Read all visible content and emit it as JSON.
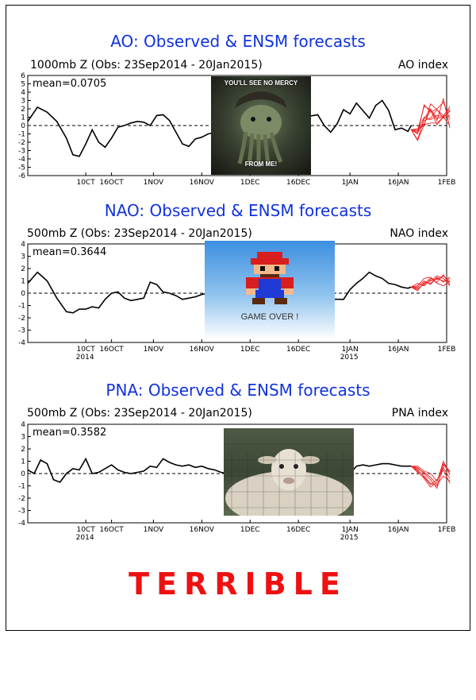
{
  "caption": "TERRIBLE",
  "memes": {
    "kraken_top_text": "YOU'LL SEE NO MERCY",
    "kraken_bottom_text": "FROM ME!",
    "gameover_text": "GAME OVER !"
  },
  "chart_data": [
    {
      "type": "line",
      "title": "AO: Observed & ENSM forecasts",
      "subtitle": "1000mb Z (Obs: 23Sep2014 - 20Jan2015)",
      "index_label": "AO index",
      "mean_label": "mean=0.0705",
      "ylim": [
        -6,
        6
      ],
      "yticks": [
        6,
        5,
        4,
        3,
        2,
        1,
        0,
        -1,
        -2,
        -3,
        -4,
        -5,
        -6
      ],
      "xlim": [
        0,
        130
      ],
      "xticks": [
        {
          "x": 18,
          "label": "10CT",
          "year": ""
        },
        {
          "x": 26,
          "label": "16OCT",
          "year": ""
        },
        {
          "x": 39,
          "label": "1NOV",
          "year": ""
        },
        {
          "x": 54,
          "label": "16NOV",
          "year": ""
        },
        {
          "x": 69,
          "label": "1DEC",
          "year": ""
        },
        {
          "x": 84,
          "label": "16DEC",
          "year": ""
        },
        {
          "x": 100,
          "label": "1JAN",
          "year": ""
        },
        {
          "x": 115,
          "label": "16JAN",
          "year": ""
        },
        {
          "x": 131,
          "label": "1FEB",
          "year": ""
        }
      ],
      "observed": {
        "x": [
          0,
          3,
          6,
          9,
          12,
          14,
          16,
          18,
          20,
          22,
          24,
          26,
          28,
          30,
          32,
          34,
          36,
          38,
          40,
          42,
          44,
          46,
          48,
          50,
          52,
          54,
          56,
          90,
          92,
          94,
          96,
          98,
          100,
          102,
          104,
          106,
          108,
          110,
          112,
          114,
          116,
          118,
          119
        ],
        "y": [
          0.5,
          2.2,
          1.6,
          0.5,
          -1.5,
          -3.5,
          -3.7,
          -2.2,
          -0.5,
          -2.0,
          -2.6,
          -1.5,
          -0.2,
          0.0,
          0.3,
          0.5,
          0.4,
          0.0,
          1.2,
          1.3,
          0.6,
          -0.8,
          -2.2,
          -2.5,
          -1.6,
          -1.4,
          -1.0,
          1.3,
          0.0,
          -0.8,
          0.2,
          1.9,
          1.4,
          2.7,
          1.8,
          0.9,
          2.4,
          3.0,
          1.8,
          -0.5,
          -0.3,
          -0.7,
          0.0
        ]
      },
      "ensemble": [
        {
          "x": [
            119,
            121,
            123,
            125,
            127,
            129,
            131
          ],
          "y": [
            -0.5,
            -1.0,
            2.5,
            1.6,
            2.0,
            2.8,
            0.7
          ]
        },
        {
          "x": [
            119,
            121,
            123,
            125,
            127,
            129,
            131
          ],
          "y": [
            -0.5,
            -0.4,
            0.2,
            1.9,
            0.9,
            1.0,
            0.0
          ]
        },
        {
          "x": [
            119,
            121,
            123,
            125,
            127,
            129,
            131
          ],
          "y": [
            -0.5,
            -0.7,
            1.0,
            0.7,
            1.2,
            1.1,
            2.3
          ]
        },
        {
          "x": [
            119,
            121,
            123,
            125,
            127,
            129,
            131
          ],
          "y": [
            -0.5,
            -1.7,
            0.8,
            2.0,
            0.6,
            3.2,
            -0.3
          ]
        },
        {
          "x": [
            119,
            121,
            123,
            125,
            127,
            129,
            131
          ],
          "y": [
            -0.5,
            -0.6,
            2.3,
            1.9,
            0.1,
            1.0,
            1.8
          ]
        },
        {
          "x": [
            119,
            121,
            123,
            125,
            127,
            129,
            131
          ],
          "y": [
            -0.5,
            -1.8,
            0.1,
            0.3,
            0.3,
            1.0,
            1.7
          ]
        },
        {
          "x": [
            119,
            121,
            123,
            125,
            127,
            129,
            131
          ],
          "y": [
            -0.5,
            -0.9,
            0.6,
            0.9,
            1.9,
            0.9,
            1.2
          ]
        },
        {
          "x": [
            119,
            121,
            123,
            125,
            127,
            129,
            131
          ],
          "y": [
            -0.5,
            -0.4,
            0.0,
            2.6,
            1.9,
            1.2,
            2.0
          ]
        }
      ]
    },
    {
      "type": "line",
      "title": "NAO: Observed & ENSM forecasts",
      "subtitle": "500mb Z (Obs: 23Sep2014 - 20Jan2015)",
      "index_label": "NAO index",
      "mean_label": "mean=0.3644",
      "ylim": [
        -4,
        4
      ],
      "yticks": [
        4,
        3,
        2,
        1,
        0,
        -1,
        -2,
        -3,
        -4
      ],
      "xlim": [
        0,
        130
      ],
      "xticks": [
        {
          "x": 18,
          "label": "10CT",
          "year": "2014"
        },
        {
          "x": 26,
          "label": "16OCT",
          "year": ""
        },
        {
          "x": 39,
          "label": "1NOV",
          "year": ""
        },
        {
          "x": 54,
          "label": "16NOV",
          "year": ""
        },
        {
          "x": 69,
          "label": "1DEC",
          "year": ""
        },
        {
          "x": 84,
          "label": "16DEC",
          "year": ""
        },
        {
          "x": 100,
          "label": "1JAN",
          "year": "2015"
        },
        {
          "x": 115,
          "label": "16JAN",
          "year": ""
        },
        {
          "x": 131,
          "label": "1FEB",
          "year": ""
        }
      ],
      "observed": {
        "x": [
          0,
          3,
          6,
          9,
          12,
          14,
          16,
          18,
          20,
          22,
          24,
          26,
          28,
          30,
          32,
          34,
          36,
          38,
          40,
          42,
          44,
          46,
          48,
          50,
          52,
          54,
          56,
          58,
          98,
          100,
          102,
          104,
          106,
          108,
          110,
          112,
          114,
          116,
          118,
          119
        ],
        "y": [
          0.8,
          1.7,
          1.0,
          -0.4,
          -1.5,
          -1.6,
          -1.3,
          -1.3,
          -1.1,
          -1.2,
          -0.5,
          0.0,
          0.1,
          -0.4,
          -0.6,
          -0.5,
          -0.4,
          0.9,
          0.7,
          0.1,
          0.0,
          -0.2,
          -0.5,
          -0.4,
          -0.3,
          -0.1,
          0.0,
          -0.3,
          -0.5,
          0.3,
          0.8,
          1.2,
          1.7,
          1.4,
          1.2,
          0.8,
          0.7,
          0.5,
          0.4,
          0.5
        ]
      },
      "ensemble": [
        {
          "x": [
            119,
            121,
            123,
            125,
            127,
            129,
            131
          ],
          "y": [
            0.5,
            0.3,
            0.8,
            1.2,
            1.1,
            1.4,
            0.9
          ]
        },
        {
          "x": [
            119,
            121,
            123,
            125,
            127,
            129,
            131
          ],
          "y": [
            0.5,
            0.5,
            1.0,
            0.7,
            1.3,
            0.9,
            1.2
          ]
        },
        {
          "x": [
            119,
            121,
            123,
            125,
            127,
            129,
            131
          ],
          "y": [
            0.5,
            0.8,
            0.6,
            1.1,
            0.9,
            1.5,
            0.7
          ]
        },
        {
          "x": [
            119,
            121,
            123,
            125,
            127,
            129,
            131
          ],
          "y": [
            0.5,
            0.2,
            0.9,
            0.8,
            1.2,
            1.0,
            1.3
          ]
        },
        {
          "x": [
            119,
            121,
            123,
            125,
            127,
            129,
            131
          ],
          "y": [
            0.5,
            0.6,
            1.2,
            1.3,
            0.8,
            0.6,
            1.0
          ]
        },
        {
          "x": [
            119,
            121,
            123,
            125,
            127,
            129,
            131
          ],
          "y": [
            0.5,
            0.4,
            0.7,
            1.0,
            1.4,
            1.2,
            0.6
          ]
        }
      ]
    },
    {
      "type": "line",
      "title": "PNA: Observed & ENSM forecasts",
      "subtitle": "500mb Z (Obs: 23Sep2014 - 20Jan2015)",
      "index_label": "PNA index",
      "mean_label": "mean=0.3582",
      "ylim": [
        -4,
        4
      ],
      "yticks": [
        4,
        3,
        2,
        1,
        0,
        -1,
        -2,
        -3,
        -4
      ],
      "xlim": [
        0,
        130
      ],
      "xticks": [
        {
          "x": 18,
          "label": "10CT",
          "year": "2014"
        },
        {
          "x": 26,
          "label": "16OCT",
          "year": ""
        },
        {
          "x": 39,
          "label": "1NOV",
          "year": ""
        },
        {
          "x": 54,
          "label": "16NOV",
          "year": ""
        },
        {
          "x": 69,
          "label": "1DEC",
          "year": ""
        },
        {
          "x": 84,
          "label": "16DEC",
          "year": ""
        },
        {
          "x": 100,
          "label": "1JAN",
          "year": "2015"
        },
        {
          "x": 115,
          "label": "16JAN",
          "year": ""
        },
        {
          "x": 131,
          "label": "1FEB",
          "year": ""
        }
      ],
      "observed": {
        "x": [
          0,
          2,
          4,
          6,
          8,
          10,
          12,
          14,
          16,
          18,
          20,
          22,
          24,
          26,
          28,
          30,
          32,
          34,
          36,
          38,
          40,
          42,
          44,
          46,
          48,
          50,
          52,
          54,
          56,
          58,
          60,
          62,
          100,
          102,
          104,
          106,
          108,
          110,
          112,
          114,
          116,
          118,
          119
        ],
        "y": [
          0.3,
          0.0,
          1.1,
          0.8,
          -0.5,
          -0.7,
          0.0,
          0.4,
          0.3,
          1.2,
          0.0,
          0.1,
          0.4,
          0.7,
          0.3,
          0.1,
          0.0,
          0.1,
          0.2,
          0.6,
          0.5,
          1.2,
          0.9,
          0.7,
          0.6,
          0.7,
          0.5,
          0.6,
          0.4,
          0.3,
          0.1,
          0.0,
          0.0,
          0.6,
          0.7,
          0.6,
          0.7,
          0.8,
          0.8,
          0.7,
          0.6,
          0.6,
          0.6
        ]
      },
      "ensemble": [
        {
          "x": [
            119,
            121,
            123,
            125,
            127,
            129,
            131
          ],
          "y": [
            0.6,
            0.3,
            -0.2,
            -0.8,
            -1.0,
            0.5,
            -0.4
          ]
        },
        {
          "x": [
            119,
            121,
            123,
            125,
            127,
            129,
            131
          ],
          "y": [
            0.6,
            0.5,
            0.0,
            -0.5,
            -1.2,
            0.8,
            0.2
          ]
        },
        {
          "x": [
            119,
            121,
            123,
            125,
            127,
            129,
            131
          ],
          "y": [
            0.6,
            0.2,
            -0.4,
            -1.1,
            -0.7,
            1.0,
            -0.1
          ]
        },
        {
          "x": [
            119,
            121,
            123,
            125,
            127,
            129,
            131
          ],
          "y": [
            0.6,
            0.4,
            0.1,
            -0.3,
            -0.9,
            -0.2,
            -0.6
          ]
        },
        {
          "x": [
            119,
            121,
            123,
            125,
            127,
            129,
            131
          ],
          "y": [
            0.6,
            0.1,
            -0.3,
            -0.9,
            -0.5,
            0.3,
            -0.8
          ]
        },
        {
          "x": [
            119,
            121,
            123,
            125,
            127,
            129,
            131
          ],
          "y": [
            0.6,
            0.6,
            0.2,
            0.0,
            -0.6,
            0.7,
            0.1
          ]
        }
      ]
    }
  ]
}
